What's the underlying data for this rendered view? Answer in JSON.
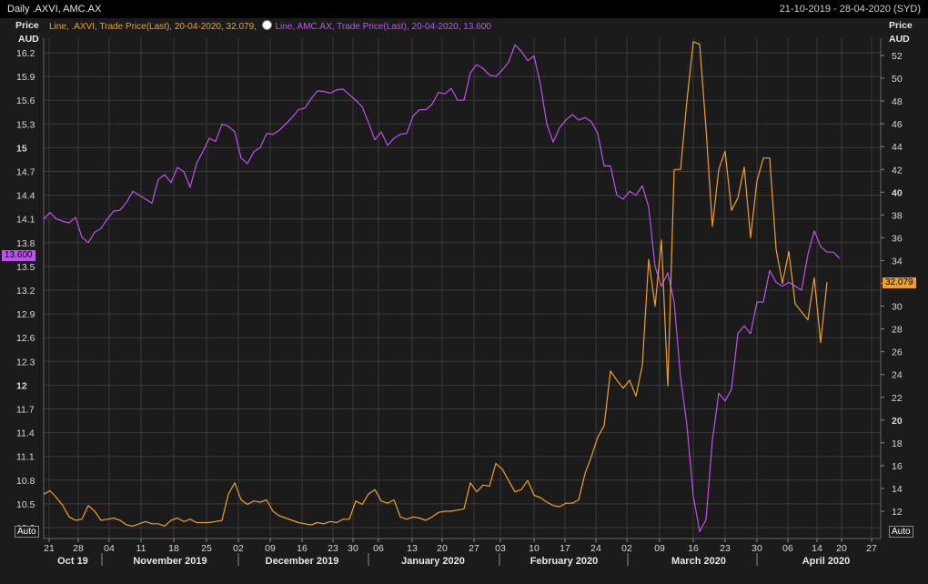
{
  "header": {
    "title": "Daily .AXVI, AMC.AX",
    "date_range": "21-10-2019 - 28-04-2020 (SYD)"
  },
  "legend": {
    "axvi": "Line, .AXVI, Trade Price(Last), 20-04-2020, 32.079,",
    "amc": "Line, AMC.AX, Trade Price(Last), 20-04-2020, 13.600"
  },
  "axis_titles": {
    "left_price": "Price",
    "left_unit": "AUD",
    "right_price": "Price",
    "right_unit": "AUD"
  },
  "auto_left": "Auto",
  "auto_right": "Auto",
  "last_value_tags": {
    "amc": "13.600",
    "axvi": "32.079"
  },
  "colors": {
    "amc": "#c050f0",
    "axvi": "#f0a020",
    "background": "#1b1b1b",
    "grid": "#3a3a3a"
  },
  "chart_data": {
    "type": "line",
    "left_axis": {
      "ticks": [
        "16.2",
        "15.9",
        "15.6",
        "15.3",
        "15",
        "14.7",
        "14.4",
        "14.1",
        "13.8",
        "13.5",
        "13.2",
        "12.9",
        "12.6",
        "12.3",
        "12",
        "11.7",
        "11.4",
        "11.1",
        "10.8",
        "10.5",
        "10.2"
      ],
      "bold_ticks": [
        "15",
        "12"
      ],
      "ylim": [
        10.1,
        16.3
      ]
    },
    "right_axis": {
      "ticks": [
        "52",
        "50",
        "48",
        "46",
        "44",
        "42",
        "40",
        "38",
        "36",
        "34",
        "32",
        "30",
        "28",
        "26",
        "24",
        "22",
        "20",
        "18",
        "16",
        "14",
        "12"
      ],
      "bold_ticks": [
        "40",
        "20"
      ],
      "ylim": [
        10.8,
        53.6
      ]
    },
    "x_axis": {
      "day_ticks": [
        "21",
        "28",
        "04",
        "11",
        "18",
        "25",
        "02",
        "09",
        "16",
        "23",
        "30",
        "06",
        "13",
        "20",
        "27",
        "03",
        "10",
        "17",
        "24",
        "02",
        "09",
        "16",
        "23",
        "30",
        "06",
        "14",
        "20",
        "27"
      ],
      "months": [
        "Oct 19",
        "November 2019",
        "December 2019",
        "January 2020",
        "February 2020",
        "March 2020",
        "April 2020"
      ]
    },
    "series": [
      {
        "name": "AMC.AX",
        "axis": "left",
        "points": [
          [
            0,
            14.1
          ],
          [
            1,
            14.18
          ],
          [
            2,
            14.1
          ],
          [
            3,
            14.07
          ],
          [
            4,
            14.05
          ],
          [
            5,
            14.12
          ],
          [
            6,
            13.87
          ],
          [
            7,
            13.8
          ],
          [
            8,
            13.93
          ],
          [
            9,
            13.98
          ],
          [
            10,
            14.1
          ],
          [
            11,
            14.2
          ],
          [
            12,
            14.21
          ],
          [
            13,
            14.31
          ],
          [
            14,
            14.45
          ],
          [
            15,
            14.4
          ],
          [
            16,
            14.35
          ],
          [
            17,
            14.3
          ],
          [
            18,
            14.6
          ],
          [
            19,
            14.66
          ],
          [
            20,
            14.56
          ],
          [
            21,
            14.75
          ],
          [
            22,
            14.7
          ],
          [
            23,
            14.5
          ],
          [
            24,
            14.8
          ],
          [
            25,
            14.95
          ],
          [
            26,
            15.12
          ],
          [
            27,
            15.08
          ],
          [
            28,
            15.3
          ],
          [
            29,
            15.27
          ],
          [
            30,
            15.2
          ],
          [
            31,
            14.87
          ],
          [
            32,
            14.8
          ],
          [
            33,
            14.95
          ],
          [
            34,
            15.0
          ],
          [
            35,
            15.18
          ],
          [
            36,
            15.17
          ],
          [
            37,
            15.22
          ],
          [
            38,
            15.3
          ],
          [
            39,
            15.38
          ],
          [
            40,
            15.48
          ],
          [
            41,
            15.5
          ],
          [
            42,
            15.62
          ],
          [
            43,
            15.72
          ],
          [
            44,
            15.71
          ],
          [
            45,
            15.69
          ],
          [
            46,
            15.73
          ],
          [
            47,
            15.74
          ],
          [
            48,
            15.67
          ],
          [
            49,
            15.6
          ],
          [
            50,
            15.52
          ],
          [
            51,
            15.32
          ],
          [
            52,
            15.1
          ],
          [
            53,
            15.2
          ],
          [
            54,
            15.03
          ],
          [
            55,
            15.12
          ],
          [
            56,
            15.17
          ],
          [
            57,
            15.18
          ],
          [
            58,
            15.4
          ],
          [
            59,
            15.48
          ],
          [
            60,
            15.48
          ],
          [
            61,
            15.55
          ],
          [
            62,
            15.7
          ],
          [
            63,
            15.68
          ],
          [
            64,
            15.75
          ],
          [
            65,
            15.6
          ],
          [
            66,
            15.6
          ],
          [
            67,
            15.95
          ],
          [
            68,
            16.05
          ],
          [
            69,
            16.0
          ],
          [
            70,
            15.92
          ],
          [
            71,
            15.9
          ],
          [
            72,
            15.98
          ],
          [
            73,
            16.08
          ],
          [
            74,
            16.3
          ],
          [
            75,
            16.22
          ],
          [
            76,
            16.1
          ],
          [
            77,
            16.16
          ],
          [
            78,
            15.8
          ],
          [
            79,
            15.3
          ],
          [
            80,
            15.07
          ],
          [
            81,
            15.25
          ],
          [
            82,
            15.35
          ],
          [
            83,
            15.42
          ],
          [
            84,
            15.35
          ],
          [
            85,
            15.38
          ],
          [
            86,
            15.33
          ],
          [
            87,
            15.18
          ],
          [
            88,
            14.77
          ],
          [
            89,
            14.77
          ],
          [
            90,
            14.4
          ],
          [
            91,
            14.35
          ],
          [
            92,
            14.45
          ],
          [
            93,
            14.4
          ],
          [
            94,
            14.52
          ],
          [
            95,
            14.25
          ],
          [
            96,
            13.5
          ],
          [
            97,
            13.25
          ],
          [
            98,
            13.42
          ],
          [
            99,
            13.05
          ],
          [
            100,
            12.1
          ],
          [
            101,
            11.5
          ],
          [
            102,
            10.6
          ],
          [
            103,
            10.15
          ],
          [
            104,
            10.3
          ],
          [
            105,
            11.3
          ],
          [
            106,
            11.9
          ],
          [
            107,
            11.8
          ],
          [
            108,
            11.95
          ],
          [
            109,
            12.65
          ],
          [
            110,
            12.75
          ],
          [
            111,
            12.65
          ],
          [
            112,
            13.05
          ],
          [
            113,
            13.05
          ],
          [
            114,
            13.45
          ],
          [
            115,
            13.3
          ],
          [
            116,
            13.25
          ],
          [
            117,
            13.3
          ],
          [
            118,
            13.25
          ],
          [
            119,
            13.2
          ],
          [
            120,
            13.65
          ],
          [
            121,
            13.95
          ],
          [
            122,
            13.75
          ],
          [
            123,
            13.68
          ],
          [
            124,
            13.68
          ],
          [
            125,
            13.6
          ]
        ]
      },
      {
        "name": ".AXVI",
        "axis": "right",
        "points": [
          [
            0,
            13.5
          ],
          [
            1,
            13.8
          ],
          [
            2,
            13.2
          ],
          [
            3,
            12.5
          ],
          [
            4,
            11.5
          ],
          [
            5,
            11.2
          ],
          [
            6,
            11.3
          ],
          [
            7,
            12.5
          ],
          [
            8,
            12.0
          ],
          [
            9,
            11.2
          ],
          [
            10,
            11.3
          ],
          [
            11,
            11.4
          ],
          [
            12,
            11.2
          ],
          [
            13,
            10.8
          ],
          [
            14,
            10.7
          ],
          [
            15,
            10.9
          ],
          [
            16,
            11.1
          ],
          [
            17,
            10.9
          ],
          [
            18,
            10.9
          ],
          [
            19,
            10.7
          ],
          [
            20,
            11.2
          ],
          [
            21,
            11.4
          ],
          [
            22,
            11.1
          ],
          [
            23,
            11.3
          ],
          [
            24,
            11.0
          ],
          [
            25,
            11.0
          ],
          [
            26,
            11.0
          ],
          [
            27,
            11.1
          ],
          [
            28,
            11.2
          ],
          [
            29,
            13.5
          ],
          [
            30,
            14.5
          ],
          [
            31,
            13.0
          ],
          [
            32,
            12.6
          ],
          [
            33,
            12.9
          ],
          [
            34,
            12.8
          ],
          [
            35,
            13.0
          ],
          [
            36,
            12.0
          ],
          [
            37,
            11.6
          ],
          [
            38,
            11.4
          ],
          [
            39,
            11.2
          ],
          [
            40,
            11.0
          ],
          [
            41,
            10.9
          ],
          [
            42,
            10.8
          ],
          [
            43,
            11.0
          ],
          [
            44,
            10.9
          ],
          [
            45,
            11.1
          ],
          [
            46,
            11.0
          ],
          [
            47,
            11.3
          ],
          [
            48,
            11.3
          ],
          [
            49,
            12.9
          ],
          [
            50,
            12.6
          ],
          [
            51,
            13.5
          ],
          [
            52,
            13.9
          ],
          [
            53,
            12.9
          ],
          [
            54,
            12.7
          ],
          [
            55,
            13.0
          ],
          [
            56,
            11.5
          ],
          [
            57,
            11.3
          ],
          [
            58,
            11.5
          ],
          [
            59,
            11.4
          ],
          [
            60,
            11.2
          ],
          [
            61,
            11.5
          ],
          [
            62,
            11.9
          ],
          [
            63,
            12.0
          ],
          [
            64,
            12.0
          ],
          [
            65,
            12.1
          ],
          [
            66,
            12.2
          ],
          [
            67,
            14.5
          ],
          [
            68,
            13.7
          ],
          [
            69,
            14.3
          ],
          [
            70,
            14.2
          ],
          [
            71,
            16.2
          ],
          [
            72,
            15.7
          ],
          [
            73,
            14.7
          ],
          [
            74,
            13.7
          ],
          [
            75,
            13.9
          ],
          [
            76,
            14.7
          ],
          [
            77,
            13.4
          ],
          [
            78,
            13.2
          ],
          [
            79,
            12.8
          ],
          [
            80,
            12.5
          ],
          [
            81,
            12.4
          ],
          [
            82,
            12.7
          ],
          [
            83,
            12.7
          ],
          [
            84,
            13.0
          ],
          [
            85,
            15.3
          ],
          [
            86,
            16.8
          ],
          [
            87,
            18.5
          ],
          [
            88,
            19.5
          ],
          [
            89,
            24.3
          ],
          [
            90,
            23.5
          ],
          [
            91,
            22.8
          ],
          [
            92,
            23.5
          ],
          [
            93,
            22.1
          ],
          [
            94,
            24.8
          ],
          [
            95,
            34.1
          ],
          [
            96,
            30.0
          ],
          [
            97,
            35.8
          ],
          [
            98,
            23.0
          ],
          [
            99,
            42.0
          ],
          [
            100,
            42.0
          ],
          [
            101,
            48.0
          ],
          [
            102,
            53.2
          ],
          [
            103,
            53.0
          ],
          [
            104,
            45.6
          ],
          [
            105,
            37.0
          ],
          [
            106,
            42.0
          ],
          [
            107,
            43.6
          ],
          [
            108,
            38.4
          ],
          [
            109,
            39.5
          ],
          [
            110,
            42.2
          ],
          [
            111,
            36.0
          ],
          [
            112,
            41.0
          ],
          [
            113,
            43.0
          ],
          [
            114,
            43.0
          ],
          [
            115,
            35.0
          ],
          [
            116,
            32.0
          ],
          [
            117,
            34.8
          ],
          [
            118,
            30.2
          ],
          [
            119,
            29.5
          ],
          [
            120,
            28.8
          ],
          [
            121,
            32.5
          ],
          [
            122,
            26.8
          ],
          [
            123,
            32.1
          ]
        ]
      }
    ]
  }
}
